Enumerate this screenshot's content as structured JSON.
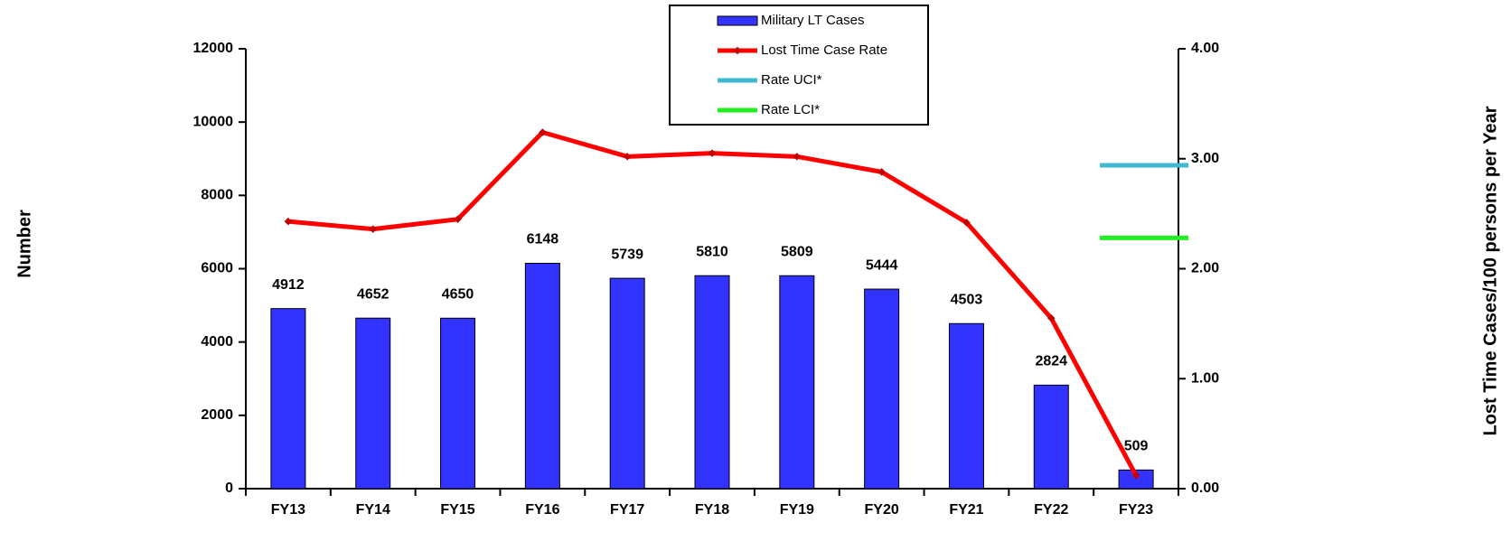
{
  "chart_data": {
    "type": "bar",
    "categories": [
      "FY13",
      "FY14",
      "FY15",
      "FY16",
      "FY17",
      "FY18",
      "FY19",
      "FY20",
      "FY21",
      "FY22",
      "FY23"
    ],
    "ylabel": "Number",
    "y2label": "Lost Time Cases/100 persons per Year",
    "ylim": [
      0,
      12000
    ],
    "yticks": [
      0,
      2000,
      4000,
      6000,
      8000,
      10000,
      12000
    ],
    "y2lim": [
      0,
      4
    ],
    "y2ticks": [
      {
        "value": 0,
        "label": "0.00"
      },
      {
        "value": 1,
        "label": "1.00"
      },
      {
        "value": 2,
        "label": "2.00"
      },
      {
        "value": 3,
        "label": "3.00"
      },
      {
        "value": 4,
        "label": "4.00"
      }
    ],
    "legend": "top",
    "series": [
      {
        "name": "Military LT Cases",
        "type": "bar",
        "color": "#3333ff",
        "values": [
          4912,
          4652,
          4650,
          6148,
          5739,
          5810,
          5809,
          5444,
          4503,
          2824,
          509
        ]
      },
      {
        "name": "Lost Time Case Rate",
        "type": "line",
        "axis": "y2",
        "color": "#ff0000",
        "values": [
          2.43,
          2.36,
          2.45,
          3.24,
          3.02,
          3.05,
          3.02,
          2.88,
          2.42,
          1.55,
          0.12
        ]
      },
      {
        "name": "Rate UCI*",
        "type": "level",
        "axis": "y2",
        "color": "#40b8d0",
        "values": [
          null,
          null,
          null,
          null,
          null,
          null,
          null,
          null,
          null,
          null,
          2.94
        ]
      },
      {
        "name": "Rate LCI*",
        "type": "level",
        "axis": "y2",
        "color": "#22ee22",
        "values": [
          null,
          null,
          null,
          null,
          null,
          null,
          null,
          null,
          null,
          null,
          2.28
        ]
      }
    ]
  }
}
